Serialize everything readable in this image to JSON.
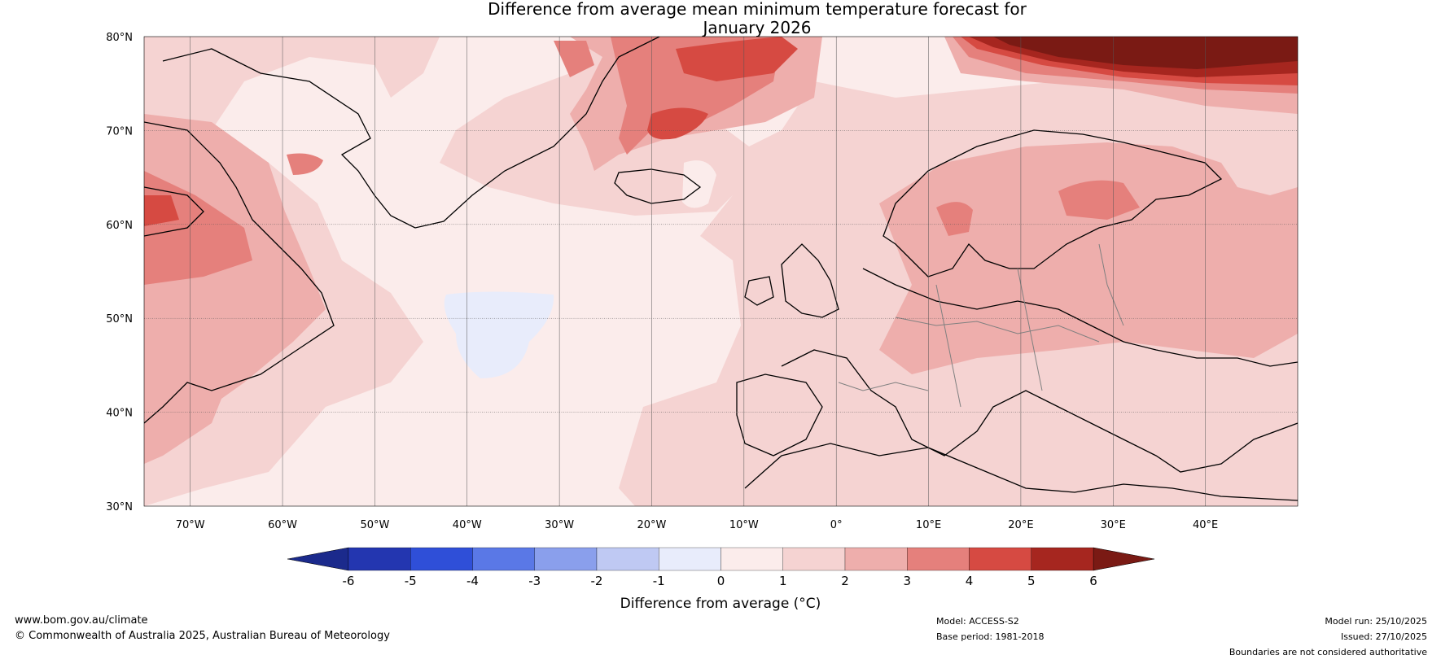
{
  "title": {
    "line1": "Difference from average mean minimum temperature forecast for",
    "line2": "January 2026"
  },
  "map": {
    "lat_labels": [
      "80°N",
      "70°N",
      "60°N",
      "50°N",
      "40°N",
      "30°N"
    ],
    "lon_labels": [
      "70°W",
      "60°W",
      "50°W",
      "40°W",
      "30°W",
      "20°W",
      "10°W",
      "0°",
      "10°E",
      "20°E",
      "30°E",
      "40°E"
    ]
  },
  "colorbar": {
    "ticks": [
      "-6",
      "-5",
      "-4",
      "-3",
      "-2",
      "-1",
      "0",
      "1",
      "2",
      "3",
      "4",
      "5",
      "6"
    ],
    "colors": [
      "#1b2a8c",
      "#2336b0",
      "#2f4fd8",
      "#5a78e6",
      "#8a9fec",
      "#bfc9f3",
      "#e8ecfb",
      "#fbeceb",
      "#f5d3d2",
      "#eeaeac",
      "#e5807c",
      "#d64a42",
      "#a6261f",
      "#7a1a14"
    ],
    "label": "Difference from average (°C)"
  },
  "footer": {
    "website": "www.bom.gov.au/climate",
    "copyright": "© Commonwealth of Australia 2025, Australian Bureau of Meteorology",
    "model": "Model: ACCESS-S2",
    "base_period": "Base period: 1981-2018",
    "model_run": "Model run: 25/10/2025",
    "issued": "Issued: 27/10/2025",
    "disclaimer": "Boundaries are not considered authoritative"
  }
}
